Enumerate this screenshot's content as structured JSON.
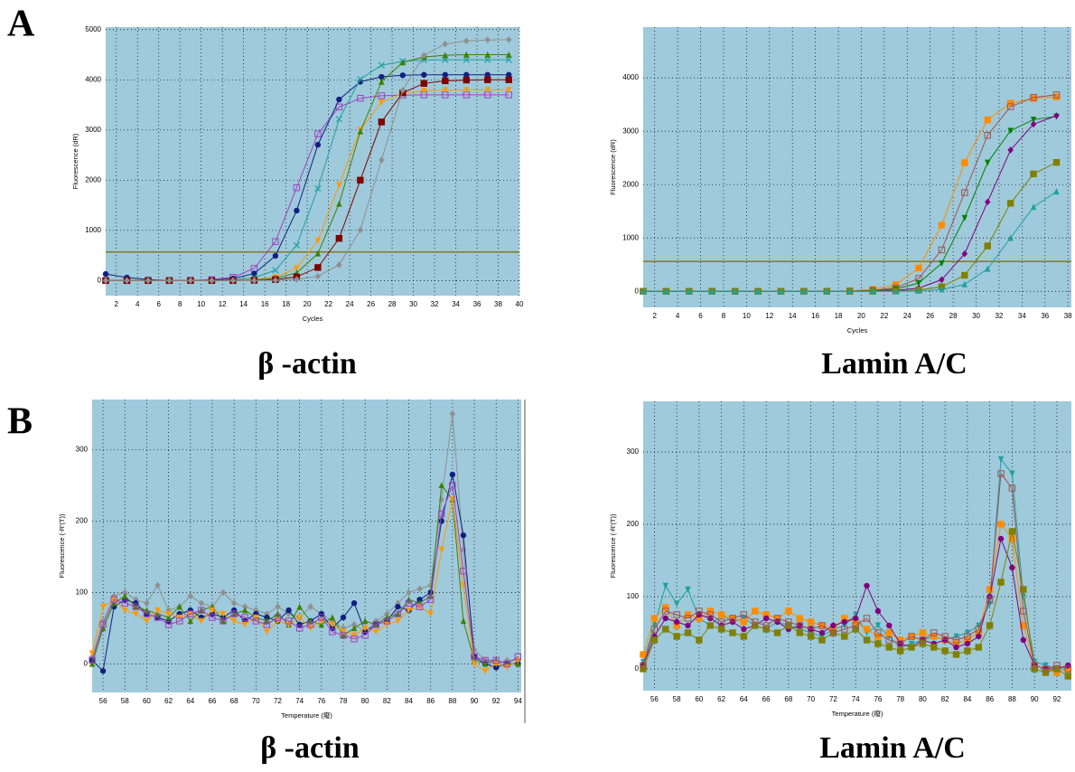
{
  "panel_labels": [
    "A",
    "B"
  ],
  "chart_data": [
    {
      "type": "line",
      "title": "β -actin",
      "x_label": "Cycles",
      "y_label": "Fluorescence (dR)",
      "x": [
        1,
        3,
        5,
        7,
        9,
        11,
        13,
        15,
        17,
        19,
        21,
        23,
        25,
        27,
        29,
        31,
        33,
        35,
        37,
        39
      ],
      "xlim": [
        1,
        40
      ],
      "ylim": [
        -300,
        5050
      ],
      "xticks": [
        2,
        4,
        6,
        8,
        10,
        12,
        14,
        16,
        18,
        20,
        22,
        24,
        26,
        28,
        30,
        32,
        34,
        36,
        38,
        40
      ],
      "yticks": [
        0,
        1000,
        2000,
        3000,
        4000,
        5000
      ],
      "grid": true,
      "threshold": 570,
      "threshold_color": "#857a22",
      "series": [
        {
          "color": "#a040c0",
          "marker": "square-open",
          "values": [
            0,
            0,
            0,
            0,
            5,
            18,
            67,
            240,
            777,
            1850,
            2923,
            3460,
            3633,
            3682,
            3695,
            3700,
            3700,
            3700,
            3700,
            3700
          ]
        },
        {
          "color": "#102080",
          "marker": "circle",
          "values": [
            130,
            60,
            20,
            0,
            0,
            8,
            41,
            139,
            492,
            1394,
            2706,
            3608,
            3961,
            4059,
            4090,
            4100,
            4100,
            4100,
            4100,
            4100
          ]
        },
        {
          "color": "#20a0a0",
          "marker": "x",
          "values": [
            0,
            0,
            0,
            0,
            0,
            4,
            15,
            57,
            207,
            700,
            1835,
            3216,
            4013,
            4290,
            4370,
            4395,
            4400,
            4400,
            4400,
            4400
          ]
        },
        {
          "color": "#ff9900",
          "marker": "triangle-down",
          "values": [
            0,
            0,
            0,
            0,
            0,
            0,
            5,
            19,
            68,
            247,
            798,
            1900,
            3002,
            3553,
            3732,
            3781,
            3796,
            3800,
            3800,
            3800
          ]
        },
        {
          "color": "#408000",
          "marker": "triangle",
          "values": [
            0,
            0,
            0,
            0,
            0,
            0,
            3,
            11,
            45,
            153,
            540,
            1530,
            2970,
            3960,
            4347,
            4455,
            4489,
            4500,
            4500,
            4500
          ]
        },
        {
          "color": "#800000",
          "marker": "square",
          "values": [
            0,
            0,
            0,
            0,
            0,
            0,
            0,
            5,
            20,
            72,
            260,
            840,
            2000,
            3160,
            3740,
            3928,
            3980,
            3995,
            4000,
            4000
          ]
        },
        {
          "color": "#909090",
          "marker": "diamond",
          "values": [
            0,
            0,
            0,
            0,
            0,
            0,
            0,
            0,
            6,
            24,
            86,
            312,
            1008,
            2400,
            3792,
            4488,
            4714,
            4776,
            4795,
            4800
          ]
        }
      ]
    },
    {
      "type": "line",
      "title": "Lamin A/C",
      "x_label": "Cycles",
      "y_label": "Fluorescence (dR)",
      "x": [
        1,
        3,
        5,
        7,
        9,
        11,
        13,
        15,
        17,
        19,
        21,
        23,
        25,
        27,
        29,
        31,
        33,
        35,
        37
      ],
      "xlim": [
        1,
        38.3
      ],
      "ylim": [
        -300,
        4950
      ],
      "xticks": [
        2,
        4,
        6,
        8,
        10,
        12,
        14,
        16,
        18,
        20,
        22,
        24,
        26,
        28,
        30,
        32,
        34,
        36,
        38
      ],
      "yticks": [
        0,
        1000,
        2000,
        3000,
        4000
      ],
      "grid": true,
      "threshold": 560,
      "threshold_color": "#857a22",
      "series": [
        {
          "color": "#ff8c00",
          "marker": "square",
          "values": [
            0,
            0,
            0,
            0,
            0,
            0,
            0,
            0,
            0,
            9,
            37,
            124,
            438,
            1241,
            2409,
            3212,
            3526,
            3614,
            3641
          ]
        },
        {
          "color": "#a05050",
          "marker": "square-open",
          "values": [
            0,
            0,
            0,
            0,
            0,
            0,
            0,
            0,
            0,
            5,
            19,
            67,
            241,
            777,
            1850,
            2923,
            3460,
            3633,
            3682
          ]
        },
        {
          "color": "#008000",
          "marker": "triangle-down",
          "values": [
            0,
            0,
            0,
            0,
            0,
            0,
            0,
            0,
            0,
            3,
            12,
            43,
            155,
            525,
            1376,
            2412,
            3010,
            3218,
            3277
          ]
        },
        {
          "color": "#800080",
          "marker": "diamond",
          "values": [
            0,
            0,
            0,
            0,
            0,
            0,
            0,
            0,
            0,
            0,
            5,
            17,
            60,
            218,
            704,
            1675,
            2647,
            3132,
            3290
          ]
        },
        {
          "color": "#808000",
          "marker": "square",
          "values": [
            0,
            0,
            0,
            0,
            0,
            0,
            0,
            0,
            0,
            0,
            0,
            6,
            25,
            85,
            300,
            850,
            1650,
            2200,
            2415
          ]
        },
        {
          "color": "#20a0a0",
          "marker": "triangle",
          "values": [
            0,
            0,
            0,
            0,
            0,
            0,
            0,
            0,
            0,
            0,
            0,
            0,
            10,
            36,
            130,
            420,
            1000,
            1580,
            1870
          ]
        }
      ]
    },
    {
      "type": "line",
      "title": "β -actin",
      "x_label": "Temperature (癈)",
      "y_label": "Fluorescence (-R'(T))",
      "x": [
        55,
        56,
        57,
        58,
        59,
        60,
        61,
        62,
        63,
        64,
        65,
        66,
        67,
        68,
        69,
        70,
        71,
        72,
        73,
        74,
        75,
        76,
        77,
        78,
        79,
        80,
        81,
        82,
        83,
        84,
        85,
        86,
        87,
        88,
        89,
        90,
        91,
        92,
        93,
        94
      ],
      "xlim": [
        55,
        94.3
      ],
      "ylim": [
        -40,
        370
      ],
      "xticks": [
        56,
        58,
        60,
        62,
        64,
        66,
        68,
        70,
        72,
        74,
        76,
        78,
        80,
        82,
        84,
        86,
        88,
        90,
        92,
        94
      ],
      "yticks": [
        0,
        100,
        200,
        300
      ],
      "grid": true,
      "series": [
        {
          "color": "#909090",
          "marker": "diamond",
          "values": [
            10,
            60,
            95,
            100,
            90,
            85,
            110,
            75,
            80,
            95,
            85,
            80,
            100,
            85,
            80,
            75,
            70,
            80,
            70,
            65,
            80,
            70,
            60,
            50,
            55,
            45,
            60,
            70,
            85,
            100,
            105,
            110,
            230,
            350,
            160,
            20,
            5,
            0,
            5,
            5
          ]
        },
        {
          "color": "#102080",
          "marker": "circle",
          "values": [
            5,
            -10,
            80,
            90,
            85,
            70,
            65,
            60,
            70,
            75,
            65,
            70,
            65,
            75,
            60,
            70,
            65,
            60,
            75,
            55,
            60,
            70,
            50,
            65,
            85,
            45,
            55,
            60,
            80,
            75,
            90,
            100,
            200,
            265,
            180,
            10,
            0,
            -5,
            0,
            0
          ]
        },
        {
          "color": "#408000",
          "marker": "triangle",
          "values": [
            0,
            50,
            85,
            95,
            80,
            75,
            70,
            65,
            80,
            60,
            75,
            80,
            60,
            70,
            75,
            65,
            60,
            70,
            55,
            80,
            60,
            55,
            65,
            40,
            50,
            60,
            55,
            65,
            70,
            90,
            85,
            95,
            250,
            230,
            60,
            5,
            0,
            5,
            0,
            0
          ]
        },
        {
          "color": "#ff9900",
          "marker": "triangle-down",
          "values": [
            15,
            80,
            90,
            75,
            70,
            60,
            75,
            70,
            65,
            70,
            60,
            75,
            70,
            60,
            55,
            65,
            45,
            60,
            55,
            65,
            50,
            60,
            55,
            45,
            40,
            50,
            45,
            55,
            60,
            75,
            80,
            70,
            160,
            230,
            110,
            0,
            -10,
            0,
            -5,
            5
          ]
        },
        {
          "color": "#a040c0",
          "marker": "square-open",
          "values": [
            5,
            55,
            90,
            85,
            80,
            70,
            65,
            55,
            60,
            70,
            75,
            65,
            60,
            70,
            65,
            60,
            55,
            65,
            60,
            50,
            55,
            65,
            45,
            40,
            35,
            40,
            55,
            60,
            70,
            85,
            80,
            90,
            210,
            250,
            130,
            10,
            5,
            5,
            0,
            10
          ]
        }
      ]
    },
    {
      "type": "line",
      "title": "Lamin A/C",
      "x_label": "Temperature (癈)",
      "y_label": "Fluorescence (-R'(T))",
      "x": [
        55,
        56,
        57,
        58,
        59,
        60,
        61,
        62,
        63,
        64,
        65,
        66,
        67,
        68,
        69,
        70,
        71,
        72,
        73,
        74,
        75,
        76,
        77,
        78,
        79,
        80,
        81,
        82,
        83,
        84,
        85,
        86,
        87,
        88,
        89,
        90,
        91,
        92,
        93
      ],
      "xlim": [
        55,
        93.3
      ],
      "ylim": [
        -30,
        370
      ],
      "xticks": [
        56,
        58,
        60,
        62,
        64,
        66,
        68,
        70,
        72,
        74,
        76,
        78,
        80,
        82,
        84,
        86,
        88,
        90,
        92
      ],
      "yticks": [
        0,
        100,
        200,
        300
      ],
      "grid": true,
      "series": [
        {
          "color": "#20a0a0",
          "marker": "triangle-down",
          "values": [
            10,
            60,
            115,
            90,
            110,
            70,
            60,
            75,
            65,
            70,
            60,
            55,
            65,
            60,
            55,
            50,
            45,
            55,
            60,
            75,
            50,
            60,
            45,
            30,
            35,
            40,
            45,
            40,
            45,
            50,
            60,
            90,
            290,
            270,
            100,
            10,
            5,
            0,
            0
          ]
        },
        {
          "color": "#ff8c00",
          "marker": "square",
          "values": [
            20,
            70,
            85,
            60,
            75,
            70,
            80,
            75,
            70,
            65,
            80,
            75,
            70,
            80,
            70,
            65,
            60,
            55,
            70,
            65,
            55,
            45,
            50,
            40,
            45,
            50,
            45,
            40,
            35,
            40,
            50,
            110,
            200,
            180,
            60,
            5,
            0,
            -5,
            0
          ]
        },
        {
          "color": "#800080",
          "marker": "circle",
          "values": [
            5,
            45,
            70,
            65,
            60,
            75,
            70,
            60,
            65,
            55,
            60,
            70,
            65,
            55,
            60,
            55,
            50,
            60,
            65,
            70,
            115,
            80,
            60,
            35,
            30,
            40,
            35,
            40,
            30,
            35,
            45,
            100,
            180,
            140,
            40,
            5,
            0,
            0,
            5
          ]
        },
        {
          "color": "#808000",
          "marker": "square",
          "values": [
            0,
            40,
            55,
            45,
            50,
            40,
            60,
            55,
            50,
            45,
            60,
            55,
            50,
            60,
            50,
            45,
            40,
            50,
            45,
            55,
            40,
            35,
            30,
            25,
            30,
            35,
            30,
            25,
            20,
            25,
            30,
            60,
            120,
            190,
            110,
            0,
            -5,
            0,
            -10
          ]
        },
        {
          "color": "#a05050",
          "marker": "square-open",
          "values": [
            5,
            55,
            80,
            75,
            70,
            80,
            75,
            65,
            70,
            75,
            65,
            60,
            70,
            65,
            60,
            55,
            60,
            50,
            55,
            60,
            70,
            50,
            40,
            35,
            45,
            40,
            50,
            45,
            40,
            45,
            55,
            95,
            270,
            250,
            80,
            5,
            0,
            5,
            0
          ]
        }
      ]
    }
  ]
}
